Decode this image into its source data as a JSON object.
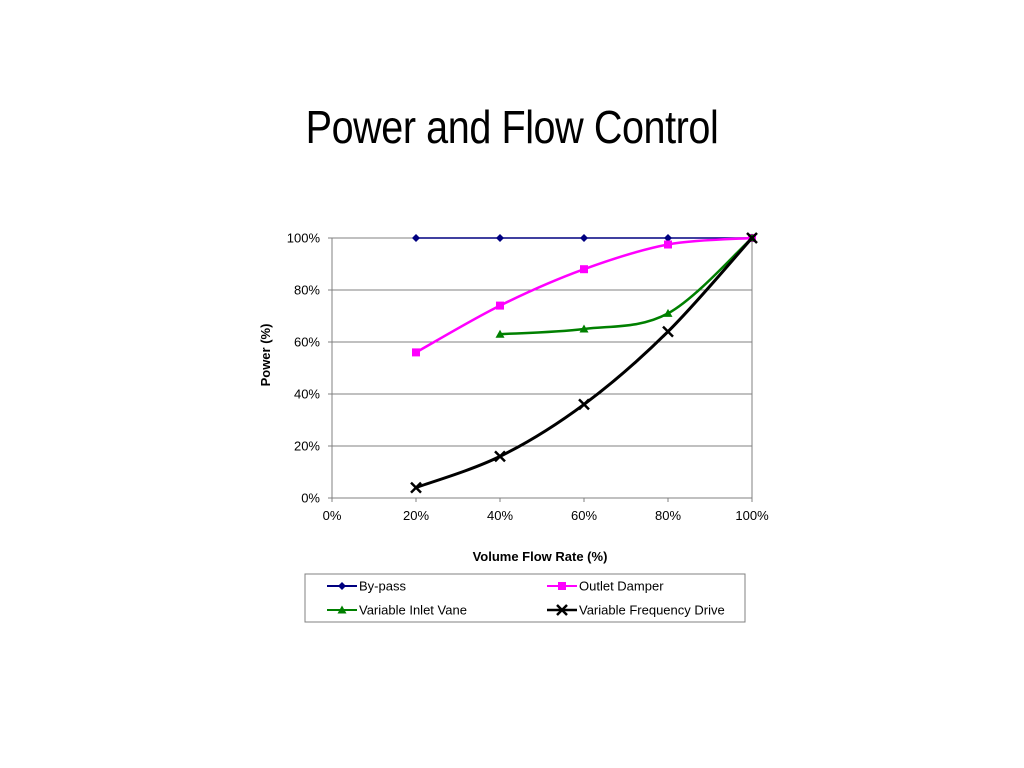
{
  "slide": {
    "title": "Power and Flow Control"
  },
  "chart_data": {
    "type": "line",
    "title": "",
    "xlabel": "Volume Flow Rate (%)",
    "ylabel": "Power (%)",
    "xlim": [
      0,
      100
    ],
    "ylim": [
      0,
      100
    ],
    "xticks": [
      "0%",
      "20%",
      "40%",
      "60%",
      "80%",
      "100%"
    ],
    "yticks": [
      "0%",
      "20%",
      "40%",
      "60%",
      "80%",
      "100%"
    ],
    "grid": "horizontal",
    "legend_position": "bottom",
    "series": [
      {
        "name": "By-pass",
        "color": "#000080",
        "marker": "diamond",
        "smooth": false,
        "x": [
          20,
          40,
          60,
          80,
          100
        ],
        "y": [
          100,
          100,
          100,
          100,
          100
        ]
      },
      {
        "name": "Outlet Damper",
        "color": "#FF00FF",
        "marker": "square",
        "smooth": true,
        "x": [
          20,
          40,
          60,
          80,
          100
        ],
        "y": [
          56,
          74,
          88,
          97.5,
          100
        ]
      },
      {
        "name": "Variable Inlet Vane",
        "color": "#008000",
        "marker": "triangle",
        "smooth": true,
        "x": [
          40,
          60,
          80,
          100
        ],
        "y": [
          63,
          65,
          71,
          100
        ]
      },
      {
        "name": "Variable Frequency Drive",
        "color": "#000000",
        "marker": "x",
        "smooth": true,
        "x": [
          20,
          40,
          60,
          80,
          100
        ],
        "y": [
          4,
          16,
          36,
          64,
          100
        ]
      }
    ]
  }
}
